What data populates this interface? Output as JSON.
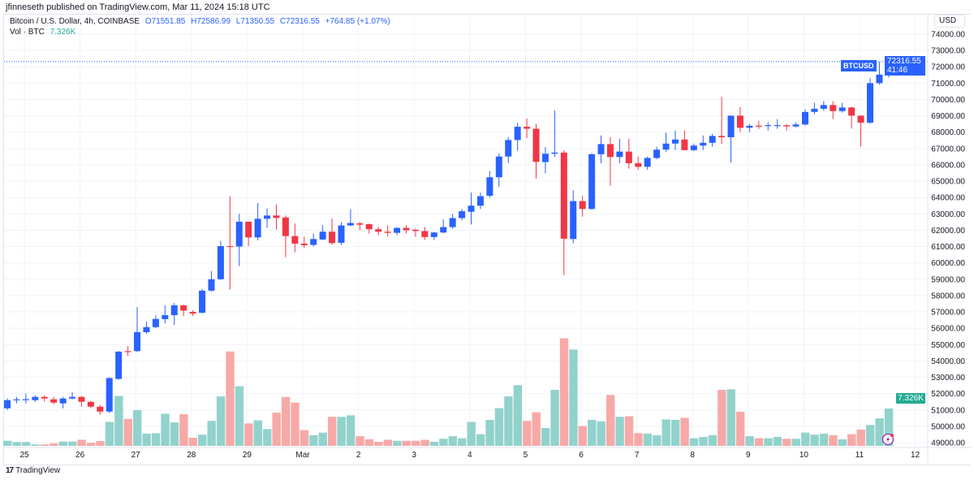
{
  "publish_line": "jfinneseth published on TradingView.com, Mar 11, 2024 15:18 UTC",
  "legend": {
    "title": "Bitcoin / U.S. Dollar, 4h, COINBASE",
    "open": "O71551.85",
    "high": "H72586.99",
    "low": "L71350.55",
    "close": "C72316.55",
    "change": "+764.85 (+1.07%)",
    "vol_label": "Vol · BTC",
    "vol_value": "7.326K"
  },
  "currency_button": "USD",
  "symbol_tag": "BTCUSD",
  "last_price": "72316.55",
  "countdown": "41:46",
  "volume_tag": "7.326K",
  "footer_logo": "TradingView",
  "colors": {
    "up": "#2962ff",
    "down": "#f23645",
    "vol_up": "#92d2cc",
    "vol_down": "#f7a9a7",
    "vol_label": "#22ab94"
  },
  "chart_data": {
    "type": "candlestick",
    "interval": "4h",
    "price_axis": {
      "min": 49000,
      "max": 74000,
      "step": 1000,
      "labels": [
        "74000.00",
        "73000.00",
        "72000.00",
        "71000.00",
        "70000.00",
        "69000.00",
        "68000.00",
        "67000.00",
        "66000.00",
        "65000.00",
        "64000.00",
        "63000.00",
        "62000.00",
        "61000.00",
        "60000.00",
        "59000.00",
        "58000.00",
        "57000.00",
        "56000.00",
        "55000.00",
        "54000.00",
        "53000.00",
        "52000.00",
        "51000.00",
        "50000.00",
        "49000.00"
      ]
    },
    "time_axis_labels": [
      "25",
      "26",
      "27",
      "28",
      "29",
      "Mar",
      "2",
      "3",
      "4",
      "5",
      "6",
      "7",
      "8",
      "9",
      "10",
      "11",
      "12"
    ],
    "candle_fields": [
      "open",
      "high",
      "low",
      "close"
    ],
    "candles": [
      [
        51100,
        51700,
        51000,
        51600
      ],
      [
        51600,
        51800,
        51400,
        51650
      ],
      [
        51620,
        52000,
        51400,
        51660
      ],
      [
        51600,
        51900,
        51500,
        51800
      ],
      [
        51800,
        51900,
        51500,
        51700
      ],
      [
        51650,
        51800,
        51350,
        51450
      ],
      [
        51400,
        51800,
        51100,
        51700
      ],
      [
        51700,
        52100,
        51650,
        51800
      ],
      [
        51800,
        51850,
        51200,
        51500
      ],
      [
        51500,
        51550,
        51100,
        51200
      ],
      [
        51200,
        51300,
        50700,
        50900
      ],
      [
        50900,
        53000,
        50800,
        52950
      ],
      [
        52900,
        54600,
        52850,
        54570
      ],
      [
        54600,
        54900,
        54300,
        54580
      ],
      [
        54600,
        57300,
        54550,
        55760
      ],
      [
        55760,
        56400,
        55650,
        56070
      ],
      [
        56070,
        56800,
        56000,
        56570
      ],
      [
        56560,
        57400,
        56300,
        56800
      ],
      [
        56800,
        57550,
        56200,
        57400
      ],
      [
        57400,
        57450,
        56750,
        57080
      ],
      [
        57000,
        57100,
        56750,
        56900
      ],
      [
        56950,
        58400,
        56900,
        58300
      ],
      [
        58300,
        59500,
        58250,
        59000
      ],
      [
        59000,
        61350,
        58950,
        61030
      ],
      [
        61030,
        64070,
        58360,
        61000
      ],
      [
        61000,
        63000,
        59800,
        62520
      ],
      [
        62520,
        62520,
        61040,
        61560
      ],
      [
        61560,
        63660,
        61380,
        62700
      ],
      [
        62700,
        63330,
        62140,
        62900
      ],
      [
        62900,
        63580,
        62040,
        62750
      ],
      [
        62780,
        62900,
        60350,
        61640
      ],
      [
        61640,
        62420,
        60650,
        61180
      ],
      [
        61180,
        61600,
        60900,
        61080
      ],
      [
        61100,
        61800,
        61000,
        61460
      ],
      [
        61430,
        62300,
        61400,
        61910
      ],
      [
        61910,
        62720,
        61100,
        61210
      ],
      [
        61230,
        62500,
        61100,
        62290
      ],
      [
        62290,
        63270,
        62250,
        62440
      ],
      [
        62420,
        62500,
        62000,
        62340
      ],
      [
        62370,
        62400,
        61800,
        62060
      ],
      [
        62060,
        62200,
        61700,
        61910
      ],
      [
        61910,
        62300,
        61600,
        61840
      ],
      [
        61840,
        62200,
        61700,
        62140
      ],
      [
        62140,
        62300,
        61800,
        62000
      ],
      [
        62030,
        62100,
        61600,
        61950
      ],
      [
        61950,
        62200,
        61400,
        61580
      ],
      [
        61580,
        61900,
        61400,
        61860
      ],
      [
        61860,
        62670,
        61800,
        62190
      ],
      [
        62190,
        63000,
        62100,
        62740
      ],
      [
        62740,
        63300,
        62600,
        63160
      ],
      [
        63130,
        64300,
        62350,
        63500
      ],
      [
        63500,
        64300,
        63300,
        64080
      ],
      [
        64110,
        65620,
        64000,
        65240
      ],
      [
        65240,
        66700,
        64660,
        66510
      ],
      [
        66510,
        67700,
        66110,
        67520
      ],
      [
        67520,
        68580,
        66860,
        68330
      ],
      [
        68330,
        68830,
        67640,
        68210
      ],
      [
        68210,
        68500,
        65150,
        66180
      ],
      [
        66170,
        67080,
        65470,
        66680
      ],
      [
        66680,
        69330,
        66480,
        66750
      ],
      [
        66750,
        66900,
        59250,
        61480
      ],
      [
        61460,
        64440,
        61200,
        63780
      ],
      [
        63780,
        64100,
        62830,
        63300
      ],
      [
        63300,
        66700,
        63250,
        66650
      ],
      [
        66650,
        67800,
        66100,
        67270
      ],
      [
        67270,
        67700,
        64720,
        66480
      ],
      [
        66480,
        67600,
        66100,
        66810
      ],
      [
        66810,
        67600,
        65770,
        66100
      ],
      [
        66100,
        66500,
        65700,
        65880
      ],
      [
        65880,
        66500,
        65700,
        66420
      ],
      [
        66420,
        67100,
        66350,
        66930
      ],
      [
        66930,
        67970,
        66800,
        67300
      ],
      [
        67300,
        68100,
        66900,
        67550
      ],
      [
        67550,
        68100,
        66900,
        66900
      ],
      [
        66900,
        67300,
        66850,
        67180
      ],
      [
        67180,
        67800,
        66900,
        67350
      ],
      [
        67350,
        67900,
        67100,
        67770
      ],
      [
        67770,
        70160,
        67270,
        67690
      ],
      [
        67690,
        69015,
        66150,
        69010
      ],
      [
        69010,
        69540,
        68000,
        68270
      ],
      [
        68270,
        68500,
        68000,
        68390
      ],
      [
        68400,
        68700,
        68200,
        68380
      ],
      [
        68410,
        68600,
        68100,
        68430
      ],
      [
        68410,
        68800,
        68200,
        68430
      ],
      [
        68420,
        68500,
        68100,
        68350
      ],
      [
        68350,
        68600,
        68300,
        68470
      ],
      [
        68470,
        69400,
        68400,
        69240
      ],
      [
        69240,
        69800,
        69100,
        69430
      ],
      [
        69430,
        69900,
        69300,
        69660
      ],
      [
        69660,
        69900,
        68800,
        69290
      ],
      [
        69290,
        69800,
        69200,
        69510
      ],
      [
        69510,
        69550,
        68220,
        69010
      ],
      [
        69010,
        69010,
        67110,
        68580
      ],
      [
        68580,
        71300,
        68500,
        71000
      ],
      [
        71000,
        72300,
        70900,
        71520
      ],
      [
        71551.85,
        72586.99,
        71350.55,
        72316.55
      ]
    ],
    "volume_unit": "K BTC",
    "volumes": [
      1.0,
      0.75,
      0.75,
      0.3,
      0.3,
      0.5,
      0.85,
      0.85,
      1.2,
      0.6,
      0.95,
      4.7,
      9.8,
      5.3,
      7.0,
      2.4,
      2.5,
      6.3,
      4.6,
      6.2,
      1.6,
      2.2,
      4.9,
      9.7,
      18.5,
      11.7,
      4.4,
      5.0,
      3.3,
      6.5,
      9.6,
      8.5,
      3.1,
      2.1,
      2.6,
      5.7,
      5.7,
      6.0,
      1.9,
      1.3,
      0.8,
      1.2,
      1.0,
      1.0,
      1.0,
      1.2,
      0.8,
      1.4,
      1.9,
      1.5,
      4.7,
      2.3,
      5.1,
      7.4,
      9.7,
      11.9,
      4.9,
      6.6,
      3.5,
      11.0,
      21.1,
      18.9,
      3.9,
      5.1,
      4.8,
      10.0,
      5.7,
      5.8,
      2.5,
      2.4,
      2.1,
      5.2,
      5.1,
      5.5,
      1.5,
      1.75,
      2.1,
      11.0,
      11.1,
      6.7,
      1.9,
      1.5,
      1.5,
      1.75,
      1.4,
      1.4,
      2.6,
      2.2,
      2.4,
      2.1,
      1.3,
      2.3,
      3.2,
      4.1,
      5.4,
      7.326
    ],
    "last_price_line": 72316.55,
    "grid": true
  }
}
